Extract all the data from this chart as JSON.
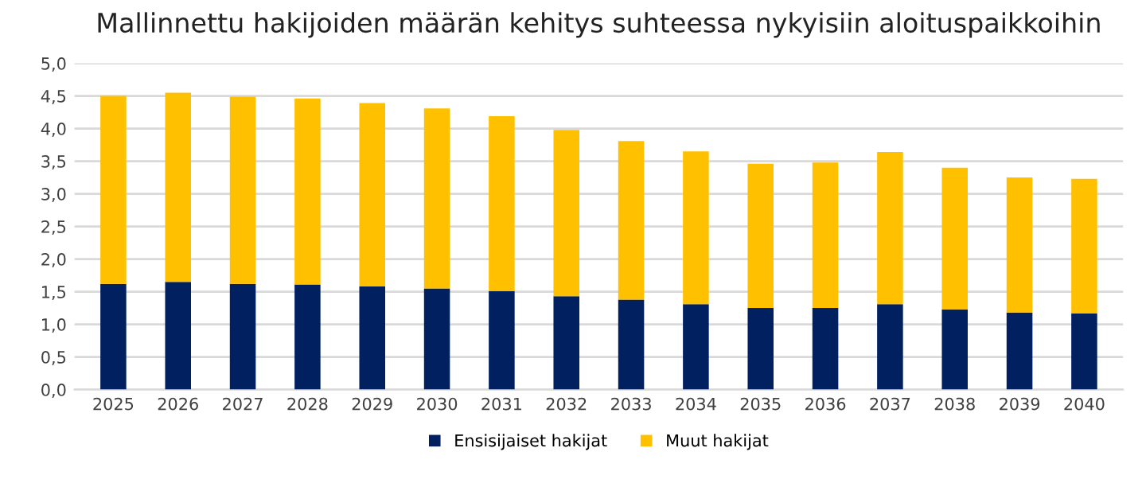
{
  "chart_data": {
    "type": "bar",
    "stacked": true,
    "title": "Mallinnettu hakijoiden määrän kehitys suhteessa nykyisiin aloituspaikkoihin",
    "categories": [
      "2025",
      "2026",
      "2027",
      "2028",
      "2029",
      "2030",
      "2031",
      "2032",
      "2033",
      "2034",
      "2035",
      "2036",
      "2037",
      "2038",
      "2039",
      "2040"
    ],
    "series": [
      {
        "name": "Ensisijaiset hakijat",
        "color": "#002060",
        "values": [
          1.62,
          1.65,
          1.62,
          1.61,
          1.58,
          1.55,
          1.51,
          1.43,
          1.38,
          1.31,
          1.25,
          1.25,
          1.31,
          1.23,
          1.18,
          1.17
        ]
      },
      {
        "name": "Muut hakijat",
        "color": "#ffc000",
        "values": [
          2.88,
          2.9,
          2.87,
          2.85,
          2.81,
          2.76,
          2.68,
          2.55,
          2.43,
          2.34,
          2.21,
          2.23,
          2.33,
          2.17,
          2.07,
          2.06
        ]
      }
    ],
    "ylim": [
      0,
      5
    ],
    "yticks": [
      {
        "value": 0,
        "label": "0,0"
      },
      {
        "value": 0.5,
        "label": "0,5"
      },
      {
        "value": 1,
        "label": "1,0"
      },
      {
        "value": 1.5,
        "label": "1,5"
      },
      {
        "value": 2,
        "label": "2,0"
      },
      {
        "value": 2.5,
        "label": "2,5"
      },
      {
        "value": 3,
        "label": "3,0"
      },
      {
        "value": 3.5,
        "label": "3,5"
      },
      {
        "value": 4,
        "label": "4,0"
      },
      {
        "value": 4.5,
        "label": "4,5"
      },
      {
        "value": 5,
        "label": "5,0"
      }
    ],
    "grid": "y",
    "legend": "bottom"
  }
}
